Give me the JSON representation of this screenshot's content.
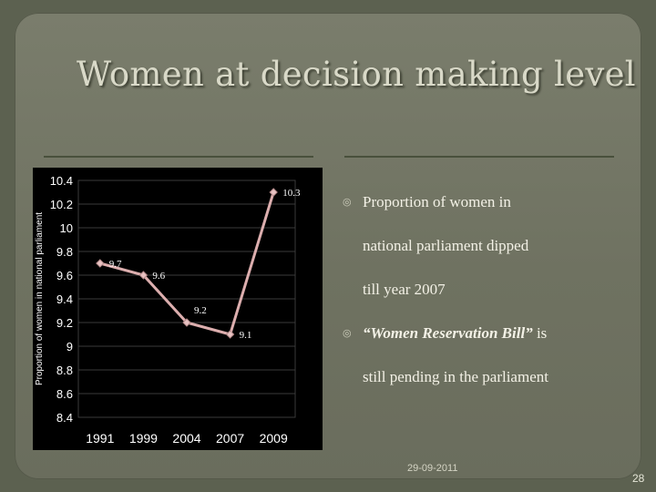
{
  "slide": {
    "title": "Women at decision making level",
    "footer_date": "29-09-2011",
    "page_number": "28"
  },
  "bullets": [
    {
      "emphasis": "",
      "lines": [
        "Proportion of women in",
        "national parliament  dipped",
        "till year 2007"
      ]
    },
    {
      "emphasis": "“Women Reservation Bill”",
      "lines": [
        " is",
        "still pending in the parliament"
      ]
    }
  ],
  "chart_data": {
    "type": "line",
    "categories": [
      "1991",
      "1999",
      "2004",
      "2007",
      "2009"
    ],
    "values": [
      9.7,
      9.6,
      9.2,
      9.1,
      10.3
    ],
    "data_labels": [
      "9.7",
      "9.6",
      "9.2",
      "9.1",
      "10.3"
    ],
    "ylabel": "Proportion of women in national parliament",
    "ylim": [
      8.4,
      10.4
    ],
    "y_ticks": [
      "8.4",
      "8.6",
      "8.8",
      "9",
      "9.2",
      "9.4",
      "9.6",
      "9.8",
      "10",
      "10.2",
      "10.4"
    ],
    "grid": true,
    "colors": {
      "background": "#000000",
      "line": "#dcaeae",
      "marker": "#e8c2c2",
      "grid": "#3a3a3a",
      "text": "#ffffff"
    }
  }
}
